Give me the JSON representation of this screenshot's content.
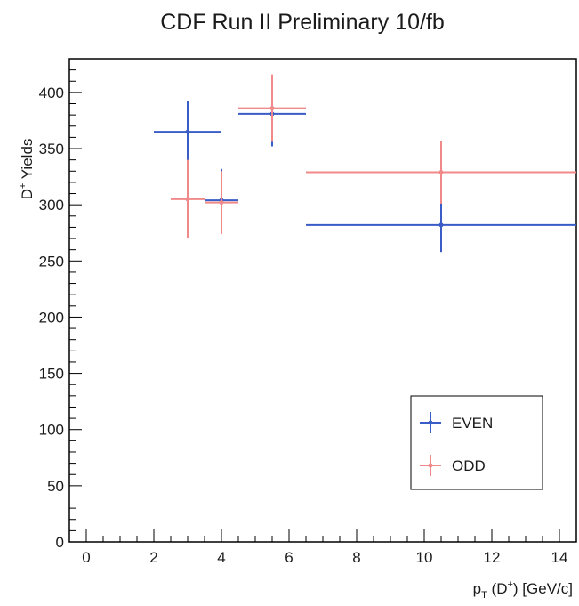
{
  "chart_data": {
    "type": "scatter",
    "title": "CDF Run II Preliminary 10/fb",
    "xlabel": {
      "main": "p",
      "sub": "T",
      "mid": " (D",
      "sup": "+",
      "tail": ") [GeV/c]"
    },
    "ylabel": {
      "main": "D",
      "sup": "+",
      "tail": " Yields"
    },
    "xlim": [
      -0.5,
      14.5
    ],
    "ylim": [
      0,
      430
    ],
    "x_ticks": [
      0,
      2,
      4,
      6,
      8,
      10,
      12,
      14
    ],
    "y_ticks": [
      0,
      50,
      100,
      150,
      200,
      250,
      300,
      350,
      400
    ],
    "grid": false,
    "legend_position": "bottom-right",
    "series": [
      {
        "name": "EVEN",
        "color": "#3a5cc7",
        "points": [
          {
            "x": 3.0,
            "xlo": 2.0,
            "xhi": 4.0,
            "y": 365,
            "err": 27
          },
          {
            "x": 4.0,
            "xlo": 3.5,
            "xhi": 4.5,
            "y": 304,
            "err": 28
          },
          {
            "x": 5.5,
            "xlo": 4.5,
            "xhi": 6.5,
            "y": 381,
            "err": 29
          },
          {
            "x": 10.5,
            "xlo": 6.5,
            "xhi": 14.5,
            "y": 282,
            "err": 24
          }
        ]
      },
      {
        "name": "ODD",
        "color": "#f08a8a",
        "points": [
          {
            "x": 3.0,
            "xlo": 2.5,
            "xhi": 3.5,
            "y": 305,
            "err": 35
          },
          {
            "x": 4.0,
            "xlo": 3.5,
            "xhi": 4.5,
            "y": 302,
            "err": 28
          },
          {
            "x": 5.5,
            "xlo": 4.5,
            "xhi": 6.5,
            "y": 386,
            "err": 30
          },
          {
            "x": 10.5,
            "xlo": 6.5,
            "xhi": 14.5,
            "y": 329,
            "err": 28
          }
        ]
      }
    ]
  }
}
